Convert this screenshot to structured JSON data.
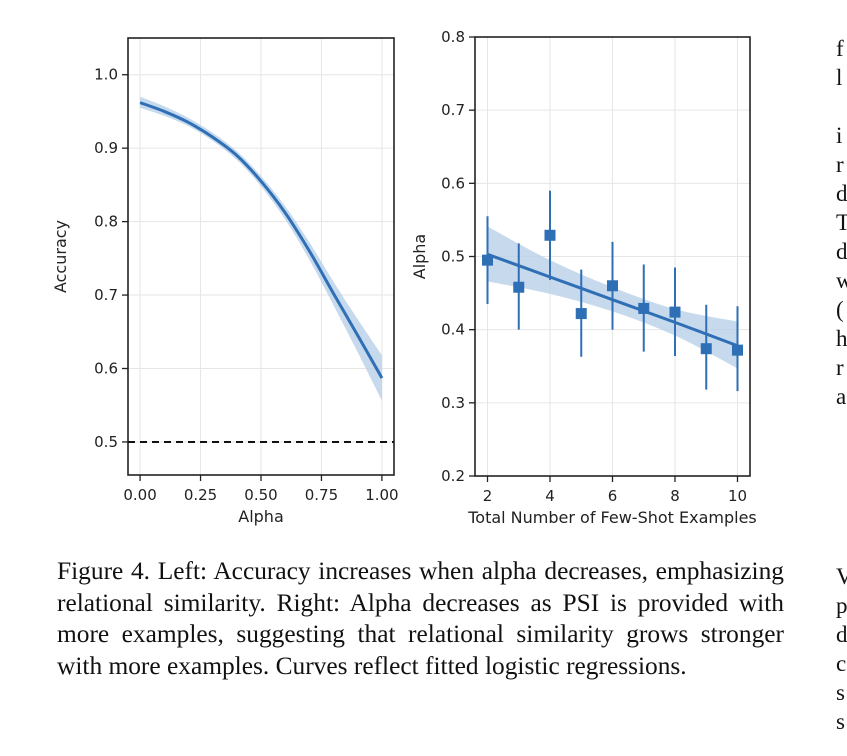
{
  "chart_data": [
    {
      "type": "line",
      "xlabel": "Alpha",
      "ylabel": "Accuracy",
      "xlim": [
        -0.05,
        1.05
      ],
      "ylim": [
        0.455,
        1.05
      ],
      "xticks": [
        0.0,
        0.25,
        0.5,
        0.75,
        1.0
      ],
      "xtick_labels": [
        "0.00",
        "0.25",
        "0.50",
        "0.75",
        "1.00"
      ],
      "yticks": [
        0.5,
        0.6,
        0.7,
        0.8,
        0.9,
        1.0
      ],
      "ytick_labels": [
        "0.5",
        "0.6",
        "0.7",
        "0.8",
        "0.9",
        "1.0"
      ],
      "grid": true,
      "x": [
        0.0,
        0.1,
        0.2,
        0.3,
        0.4,
        0.5,
        0.6,
        0.7,
        0.8,
        0.9,
        1.0
      ],
      "y": [
        0.962,
        0.95,
        0.935,
        0.915,
        0.89,
        0.855,
        0.812,
        0.76,
        0.702,
        0.645,
        0.587
      ],
      "ci_lower": [
        0.955,
        0.944,
        0.93,
        0.91,
        0.884,
        0.848,
        0.803,
        0.748,
        0.686,
        0.622,
        0.556
      ],
      "ci_upper": [
        0.97,
        0.957,
        0.941,
        0.921,
        0.896,
        0.862,
        0.821,
        0.772,
        0.718,
        0.667,
        0.618
      ],
      "reference_line": {
        "y": 0.5,
        "style": "dashed"
      },
      "colors": {
        "line": "#2f6fb5",
        "band": "#b9cfe9",
        "reference": "#111111"
      }
    },
    {
      "type": "scatter",
      "xlabel": "Total Number of Few-Shot Examples",
      "ylabel": "Alpha",
      "xlim": [
        1.6,
        10.4
      ],
      "ylim": [
        0.2,
        0.8
      ],
      "xticks": [
        2,
        4,
        6,
        8,
        10
      ],
      "xtick_labels": [
        "2",
        "4",
        "6",
        "8",
        "10"
      ],
      "yticks": [
        0.2,
        0.3,
        0.4,
        0.5,
        0.6,
        0.7,
        0.8
      ],
      "ytick_labels": [
        "0.2",
        "0.3",
        "0.4",
        "0.5",
        "0.6",
        "0.7",
        "0.8"
      ],
      "grid": true,
      "points": [
        {
          "x": 2,
          "y": 0.495,
          "lo": 0.435,
          "hi": 0.555
        },
        {
          "x": 3,
          "y": 0.458,
          "lo": 0.4,
          "hi": 0.518
        },
        {
          "x": 4,
          "y": 0.529,
          "lo": 0.468,
          "hi": 0.59
        },
        {
          "x": 5,
          "y": 0.422,
          "lo": 0.363,
          "hi": 0.482
        },
        {
          "x": 6,
          "y": 0.46,
          "lo": 0.4,
          "hi": 0.52
        },
        {
          "x": 7,
          "y": 0.429,
          "lo": 0.37,
          "hi": 0.489
        },
        {
          "x": 8,
          "y": 0.424,
          "lo": 0.364,
          "hi": 0.485
        },
        {
          "x": 9,
          "y": 0.374,
          "lo": 0.318,
          "hi": 0.434
        },
        {
          "x": 10,
          "y": 0.372,
          "lo": 0.316,
          "hi": 0.432
        }
      ],
      "fit": {
        "x": [
          2,
          4,
          6,
          8,
          10
        ],
        "y": [
          0.503,
          0.472,
          0.441,
          0.41,
          0.378
        ],
        "ci_lower": [
          0.466,
          0.449,
          0.425,
          0.392,
          0.347
        ],
        "ci_upper": [
          0.541,
          0.495,
          0.458,
          0.428,
          0.411
        ]
      },
      "colors": {
        "line": "#2f6fb5",
        "band": "#b9cfe9",
        "marker": "#2f6fb5"
      }
    }
  ],
  "caption": "Figure 4. Left: Accuracy increases when alpha decreases, emphasizing relational similarity. Right: Alpha decreases as PSI is provided with more examples, suggesting that relational similarity grows stronger with more examples. Curves reflect fitted logistic regressions.",
  "right_column_top": [
    "f",
    "l",
    "",
    "i",
    "r",
    "d",
    "T",
    "d",
    "w",
    "(",
    "h",
    "r",
    "a"
  ],
  "right_column_bottom": [
    "V",
    "p",
    "d",
    "c",
    "s",
    "s"
  ]
}
